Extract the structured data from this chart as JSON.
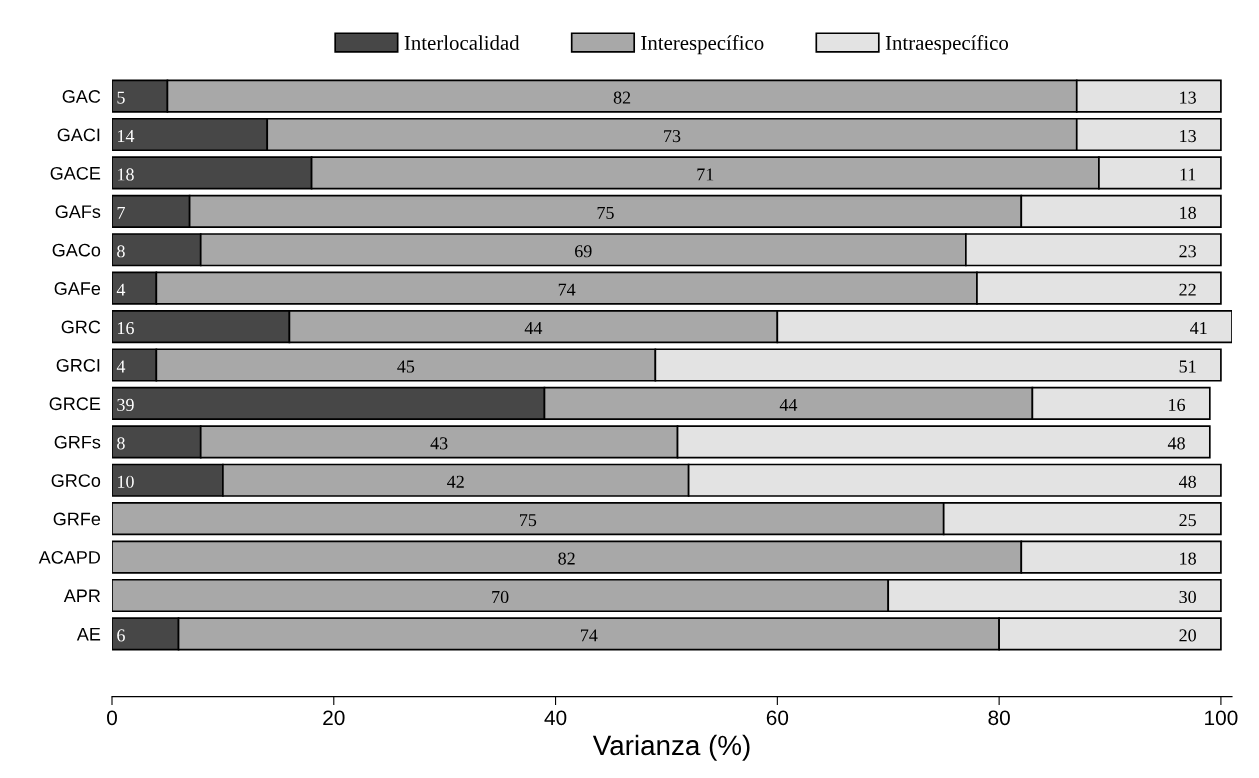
{
  "chart_data": {
    "type": "bar",
    "orientation": "horizontal",
    "stacked": true,
    "xlabel": "Varianza (%)",
    "categories": [
      "GAC",
      "GACI",
      "GACE",
      "GAFs",
      "GACo",
      "GAFe",
      "GRC",
      "GRCI",
      "GRCE",
      "GRFs",
      "GRCo",
      "GRFe",
      "ACAPD",
      "APR",
      "AE"
    ],
    "series": [
      {
        "name": "Interlocalidad",
        "color": "#474747",
        "values": [
          5,
          14,
          18,
          7,
          8,
          4,
          16,
          4,
          39,
          8,
          10,
          0,
          0,
          0,
          6
        ],
        "value_labels": [
          "5",
          "14",
          "18",
          "7",
          "8",
          "4",
          "16",
          "4",
          "39",
          "8",
          "10",
          null,
          null,
          null,
          "6"
        ]
      },
      {
        "name": "Interespecífico",
        "color": "#a8a8a8",
        "values": [
          82,
          73,
          71,
          75,
          69,
          74,
          44,
          45,
          44,
          43,
          42,
          75,
          82,
          70,
          74
        ],
        "value_labels": [
          "82",
          "73",
          "71",
          "75",
          "69",
          "74",
          "44",
          "45",
          "44",
          "43",
          "42",
          "75",
          "82",
          "70",
          "74"
        ]
      },
      {
        "name": "Intraespecífico",
        "color": "#e3e3e3",
        "values": [
          13,
          13,
          11,
          18,
          23,
          22,
          41,
          51,
          16,
          48,
          48,
          25,
          18,
          30,
          20
        ],
        "value_labels": [
          "13",
          "13",
          "11",
          "18",
          "23",
          "22",
          "41",
          "51",
          "16",
          "48",
          "48",
          "25",
          "18",
          "30",
          "20"
        ]
      }
    ],
    "xlim": [
      0,
      101
    ],
    "xticks": [
      0,
      20,
      40,
      60,
      80,
      100
    ],
    "grid": false,
    "legend": "top"
  }
}
